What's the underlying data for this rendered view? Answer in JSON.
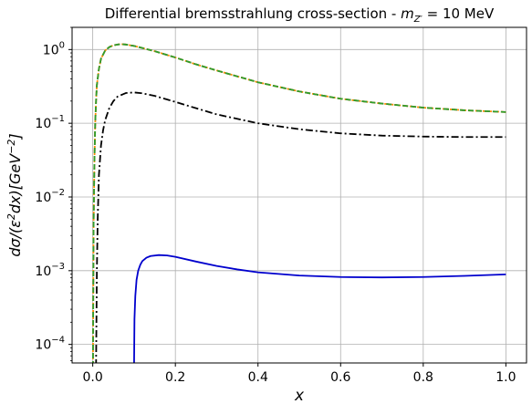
{
  "chart_data": {
    "type": "line",
    "title_prefix": "Differential bremsstrahlung cross-section - ",
    "title_math_var": "m",
    "title_math_sub": "Z′",
    "title_suffix": " = 10 MeV",
    "xlabel": "x",
    "ylabel_base": "dσ/(ε",
    "ylabel_sup1": "2",
    "ylabel_mid": "dx)[GeV",
    "ylabel_sup2": "−2",
    "ylabel_end": "]",
    "xlim": [
      -0.05,
      1.05
    ],
    "ylim": [
      5.6e-05,
      2.0
    ],
    "yscale": "log",
    "grid": true,
    "x_ticks": [
      {
        "value": 0.0,
        "label": "0.0"
      },
      {
        "value": 0.2,
        "label": "0.2"
      },
      {
        "value": 0.4,
        "label": "0.4"
      },
      {
        "value": 0.6,
        "label": "0.6"
      },
      {
        "value": 0.8,
        "label": "0.8"
      },
      {
        "value": 1.0,
        "label": "1.0"
      }
    ],
    "y_ticks": [
      {
        "value": 0.0001,
        "base": "10",
        "exp": "−4"
      },
      {
        "value": 0.001,
        "base": "10",
        "exp": "−3"
      },
      {
        "value": 0.01,
        "base": "10",
        "exp": "−2"
      },
      {
        "value": 0.1,
        "base": "10",
        "exp": "−1"
      },
      {
        "value": 1.0,
        "base": "10",
        "exp": "0"
      }
    ],
    "series": [
      {
        "color": "#d62728",
        "style": "dashed",
        "x": [
          0.0005,
          0.002,
          0.004,
          0.006,
          0.008,
          0.01,
          0.015,
          0.02,
          0.03,
          0.04,
          0.05,
          0.06,
          0.07,
          0.08,
          0.1,
          0.12,
          0.15,
          0.2,
          0.25,
          0.3,
          0.4,
          0.5,
          0.6,
          0.7,
          0.8,
          0.9,
          1.0
        ],
        "y": [
          5e-05,
          0.004,
          0.03,
          0.1,
          0.2,
          0.33,
          0.55,
          0.75,
          0.97,
          1.08,
          1.14,
          1.17,
          1.18,
          1.17,
          1.12,
          1.05,
          0.95,
          0.78,
          0.63,
          0.52,
          0.36,
          0.27,
          0.215,
          0.185,
          0.163,
          0.15,
          0.142
        ]
      },
      {
        "color": "#ff8c00",
        "style": "dotted",
        "x": [
          0.0005,
          0.002,
          0.004,
          0.006,
          0.008,
          0.01,
          0.015,
          0.02,
          0.03,
          0.04,
          0.05,
          0.06,
          0.07,
          0.08,
          0.1,
          0.12,
          0.15,
          0.2,
          0.25,
          0.3,
          0.4,
          0.5,
          0.6,
          0.7,
          0.8,
          0.9,
          1.0
        ],
        "y": [
          5e-05,
          0.004,
          0.03,
          0.1,
          0.2,
          0.33,
          0.55,
          0.75,
          0.97,
          1.08,
          1.14,
          1.17,
          1.18,
          1.17,
          1.12,
          1.05,
          0.95,
          0.78,
          0.63,
          0.52,
          0.36,
          0.27,
          0.215,
          0.185,
          0.163,
          0.15,
          0.142
        ]
      },
      {
        "color": "#2ca02c",
        "style": "dashed",
        "x": [
          0.0005,
          0.002,
          0.004,
          0.006,
          0.008,
          0.01,
          0.015,
          0.02,
          0.03,
          0.04,
          0.05,
          0.06,
          0.07,
          0.08,
          0.1,
          0.12,
          0.15,
          0.2,
          0.25,
          0.3,
          0.4,
          0.5,
          0.6,
          0.7,
          0.8,
          0.9,
          1.0
        ],
        "y": [
          5e-05,
          0.004,
          0.03,
          0.1,
          0.2,
          0.33,
          0.55,
          0.75,
          0.97,
          1.08,
          1.14,
          1.17,
          1.18,
          1.17,
          1.12,
          1.05,
          0.95,
          0.78,
          0.63,
          0.52,
          0.36,
          0.27,
          0.215,
          0.185,
          0.163,
          0.15,
          0.142
        ]
      },
      {
        "color": "#000000",
        "style": "dashdot",
        "x": [
          0.008,
          0.01,
          0.012,
          0.015,
          0.02,
          0.025,
          0.03,
          0.04,
          0.05,
          0.06,
          0.08,
          0.1,
          0.12,
          0.15,
          0.2,
          0.25,
          0.3,
          0.4,
          0.5,
          0.6,
          0.7,
          0.8,
          0.9,
          1.0
        ],
        "y": [
          5e-05,
          0.001,
          0.005,
          0.02,
          0.05,
          0.08,
          0.11,
          0.16,
          0.2,
          0.23,
          0.257,
          0.262,
          0.255,
          0.235,
          0.195,
          0.16,
          0.132,
          0.1,
          0.083,
          0.073,
          0.068,
          0.066,
          0.065,
          0.065
        ]
      },
      {
        "color": "#0000cd",
        "style": "solid",
        "x": [
          0.1,
          0.101,
          0.103,
          0.106,
          0.11,
          0.115,
          0.12,
          0.13,
          0.14,
          0.16,
          0.18,
          0.2,
          0.25,
          0.3,
          0.35,
          0.4,
          0.5,
          0.6,
          0.7,
          0.8,
          0.9,
          1.0
        ],
        "y": [
          5e-05,
          0.00022,
          0.00045,
          0.00075,
          0.001,
          0.0012,
          0.00135,
          0.0015,
          0.00158,
          0.00163,
          0.00161,
          0.00154,
          0.00133,
          0.00116,
          0.00104,
          0.00095,
          0.00086,
          0.00082,
          0.00081,
          0.00082,
          0.00085,
          0.00089
        ]
      }
    ]
  }
}
